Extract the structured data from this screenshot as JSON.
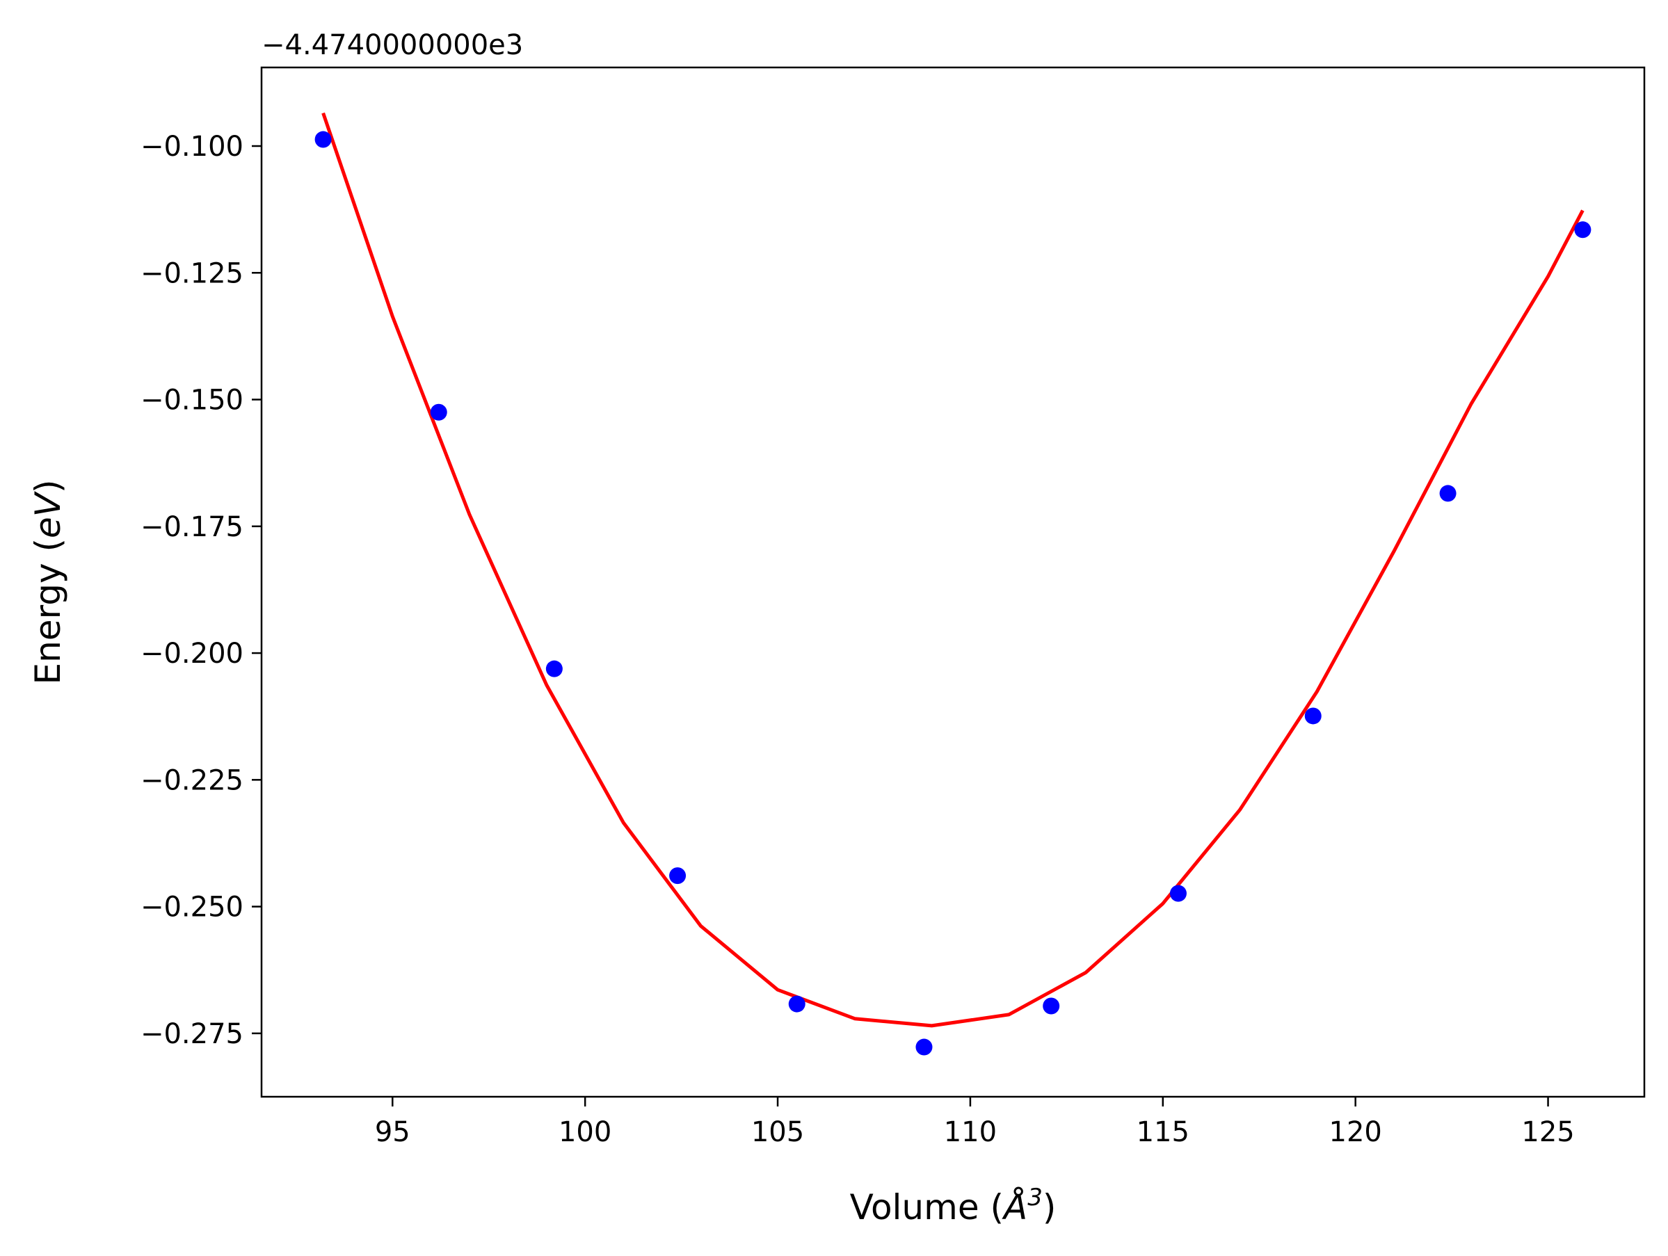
{
  "chart_data": {
    "type": "scatter",
    "title": "",
    "offset_text": "−4.4740000000e3",
    "xlabel": {
      "prefix": "Volume (",
      "symbol": "Å",
      "superscript": "3",
      "suffix": ")"
    },
    "ylabel": {
      "prefix": "Energy (",
      "symbol": "eV",
      "suffix": ")"
    },
    "xlim": [
      91.6,
      127.5
    ],
    "ylim": [
      -0.2875,
      -0.0845
    ],
    "xticks": [
      95,
      100,
      105,
      110,
      115,
      120,
      125
    ],
    "xtick_labels": [
      "95",
      "100",
      "105",
      "110",
      "115",
      "120",
      "125"
    ],
    "yticks": [
      -0.1,
      -0.125,
      -0.15,
      -0.175,
      -0.2,
      -0.225,
      -0.25,
      -0.275
    ],
    "ytick_labels": [
      "−0.100",
      "−0.125",
      "−0.150",
      "−0.175",
      "−0.200",
      "−0.225",
      "−0.250",
      "−0.275"
    ],
    "grid": false,
    "series": [
      {
        "kind": "points",
        "color": "#0000ff",
        "x": [
          93.2,
          96.2,
          99.2,
          102.4,
          105.5,
          108.8,
          112.1,
          115.4,
          118.9,
          122.4,
          125.9
        ],
        "y": [
          -0.0987,
          -0.1525,
          -0.2031,
          -0.2439,
          -0.2692,
          -0.2777,
          -0.2696,
          -0.2474,
          -0.2124,
          -0.1685,
          -0.1165
        ]
      },
      {
        "kind": "fit-line",
        "color": "#ff0000",
        "x": [
          93.2,
          95.0,
          97.0,
          99.0,
          101.0,
          103.0,
          105.0,
          107.0,
          109.0,
          111.0,
          113.0,
          115.0,
          117.0,
          119.0,
          121.0,
          123.0,
          125.0,
          125.9
        ],
        "y": [
          -0.0935,
          -0.1336,
          -0.1727,
          -0.2063,
          -0.2335,
          -0.2538,
          -0.2664,
          -0.2721,
          -0.2735,
          -0.2713,
          -0.263,
          -0.2494,
          -0.2309,
          -0.2076,
          -0.1799,
          -0.1509,
          -0.1257,
          -0.1127
        ]
      }
    ]
  }
}
